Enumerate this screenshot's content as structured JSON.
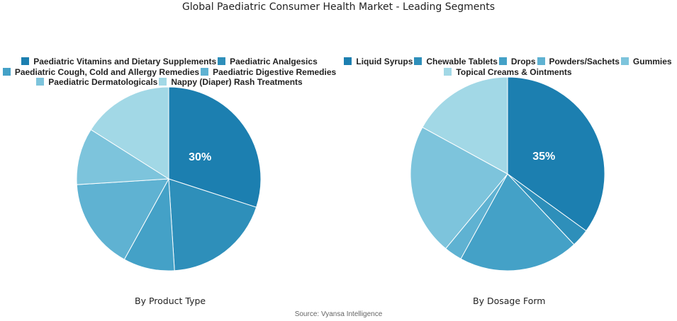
{
  "title": "Global Paediatric Consumer Health Market - Leading Segments",
  "source": "Source: Vyansa Intelligence",
  "chart_data": [
    {
      "type": "pie",
      "subtitle": "By Product Type",
      "categories": [
        "Paediatric Vitamins and Dietary Supplements",
        "Paediatric Analgesics",
        "Paediatric Cough, Cold and Allergy Remedies",
        "Paediatric Digestive Remedies",
        "Paediatric Dermatologicals",
        "Nappy (Diaper) Rash Treatments"
      ],
      "values": [
        30,
        19,
        9,
        16,
        10,
        16
      ],
      "labels": [
        "30%",
        "",
        "",
        "",
        "",
        ""
      ],
      "colors": [
        "#1c7fb0",
        "#2e8fba",
        "#44a1c7",
        "#5fb2d2",
        "#7dc4dc",
        "#a2d8e6"
      ],
      "legend": "top"
    },
    {
      "type": "pie",
      "subtitle": "By Dosage Form",
      "categories": [
        "Liquid Syrups",
        "Chewable Tablets",
        "Drops",
        "Powders/Sachets",
        "Gummies",
        "Topical Creams & Ointments"
      ],
      "values": [
        35,
        3,
        20,
        3,
        22,
        17
      ],
      "labels": [
        "35%",
        "",
        "",
        "",
        "",
        ""
      ],
      "colors": [
        "#1c7fb0",
        "#2e8fba",
        "#44a1c7",
        "#5fb2d2",
        "#7dc4dc",
        "#a2d8e6"
      ],
      "legend": "top"
    }
  ]
}
